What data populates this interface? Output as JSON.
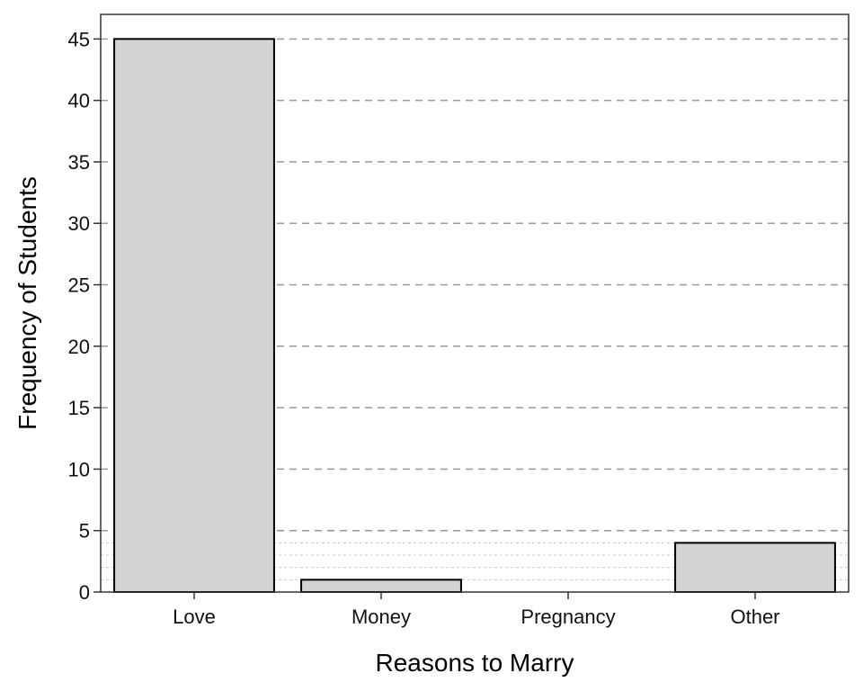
{
  "chart_data": {
    "type": "bar",
    "xlabel": "Reasons to Marry",
    "ylabel": "Frequency of Students",
    "categories": [
      "Love",
      "Money",
      "Pregnancy",
      "Other"
    ],
    "values": [
      45,
      1,
      0,
      4
    ],
    "ylim": [
      0,
      47
    ],
    "yticks": [
      0,
      5,
      10,
      15,
      20,
      25,
      30,
      35,
      40,
      45
    ],
    "grid": {
      "major_dashed": true,
      "minor_dotted": [
        1,
        2,
        3,
        4
      ]
    },
    "colors": {
      "bar_fill": "#d3d3d3",
      "bar_stroke": "#000000",
      "major_grid": "#9a9a9a",
      "minor_grid": "#c8c8c8"
    }
  }
}
